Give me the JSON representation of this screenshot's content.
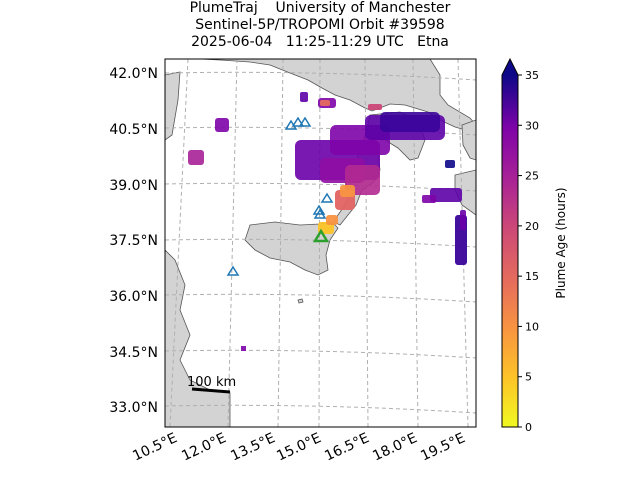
{
  "title": {
    "line1": "PlumeTraj    University of Manchester",
    "line2": "Sentinel-5P/TROPOMI Orbit #39598",
    "line3": "2025-06-04   11:25-11:29 UTC   Etna"
  },
  "map": {
    "lat_labels": [
      "42.0°N",
      "40.5°N",
      "39.0°N",
      "37.5°N",
      "36.0°N",
      "34.5°N",
      "33.0°N"
    ],
    "lon_labels": [
      "10.5°E",
      "12.0°E",
      "13.5°E",
      "15.0°E",
      "16.5°E",
      "18.0°E",
      "19.5°E"
    ],
    "scale_bar": "100 km",
    "land_color": "#d3d3d3",
    "sea_color": "#ffffff",
    "grid": true
  },
  "colorbar": {
    "label": "Plume Age (hours)",
    "ticks": [
      "0",
      "5",
      "10",
      "15",
      "20",
      "25",
      "30",
      "35"
    ],
    "range": [
      0,
      35
    ],
    "colormap": "plasma_r",
    "extend": "max"
  }
}
